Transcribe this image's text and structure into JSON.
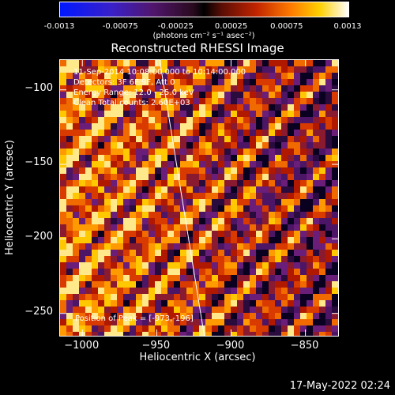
{
  "colorbar": {
    "ticks": [
      "-0.0013",
      "-0.00075",
      "-0.00025",
      "0.00025",
      "0.00075",
      "0.0013"
    ],
    "tick_values": [
      -0.0013,
      -0.00075,
      -0.00025,
      0.00025,
      0.00075,
      0.0013
    ],
    "units": "(photons cm⁻² s⁻¹ asec⁻²)"
  },
  "chart_data": {
    "type": "heatmap",
    "title": "Reconstructed RHESSI Image",
    "xlabel": "Heliocentric X (arcsec)",
    "ylabel": "Heliocentric Y (arcsec)",
    "xlim": [
      -1015,
      -828
    ],
    "ylim": [
      -265,
      -80
    ],
    "x_ticks": [
      -1000,
      -950,
      -900,
      -850
    ],
    "y_ticks": [
      -100,
      -150,
      -200,
      -250
    ],
    "x_tick_labels": [
      "−1000",
      "−950",
      "−900",
      "−850"
    ],
    "y_tick_labels": [
      "−100",
      "−150",
      "−200",
      "−250"
    ],
    "limb_line": [
      [
        -948,
        -80
      ],
      [
        -918,
        -265
      ]
    ],
    "annotations": [
      "11-Sep-2014 10:08:00.000 to 10:14:00.000",
      "Detectors: 3F 6F 9F, Att 0",
      "Energy Range: 12.0 - 25.0 keV",
      "Clean     Total counts: 2.60E+03"
    ],
    "peak_label": "Position of Peak = [-973,-196]"
  },
  "timestamp": "17-May-2022 02:24"
}
